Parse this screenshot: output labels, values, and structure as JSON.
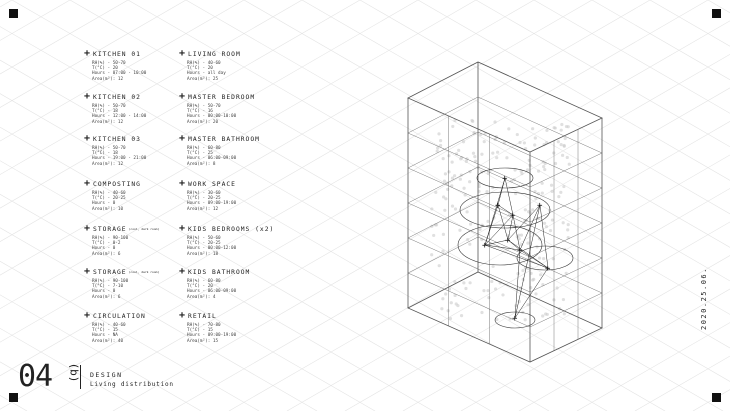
{
  "rooms": [
    {
      "title": "KITCHEN 01",
      "rh": "RH(%) - 50-70",
      "t": "T(°C) - 20",
      "hours": "Hours - 07:00 - 10:00",
      "area": "Area(m²): 12"
    },
    {
      "title": "KITCHEN 02",
      "rh": "RH(%) - 50-70",
      "t": "T(°C) - 18",
      "hours": "Hours - 12:00 - 14:00",
      "area": "Area(m²): 12"
    },
    {
      "title": "KITCHEN 03",
      "rh": "RH(%) - 50-70",
      "t": "T(°C) - 18",
      "hours": "Hours - 19:00 - 21:00",
      "area": "Area(m²): 12"
    },
    {
      "title": "COMPOSTING",
      "rh": "RH(%) - 40-60",
      "t": "T(°C) - 20-25",
      "hours": "Hours - 0",
      "area": "Area(m²): 10"
    },
    {
      "title": "STORAGE",
      "subtitle": "(cool, dark room)",
      "rh": "RH(%) - 90-100",
      "t": "T(°C) - 0-2",
      "hours": "Hours - 0",
      "area": "Area(m²): 6"
    },
    {
      "title": "STORAGE",
      "subtitle": "(cool, dark room)",
      "rh": "RH(%) - 90-100",
      "t": "T(°C) - 7-10",
      "hours": "Hours - 0",
      "area": "Area(m²): 6"
    },
    {
      "title": "CIRCULATION",
      "rh": "RH(%) - 40-60",
      "t": "T(°C) - 15",
      "hours": "Hours - NA",
      "area": "Area(m²): 40"
    },
    {
      "title": "LIVING ROOM",
      "rh": "RH(%) - 40-60",
      "t": "T(°C) - 20",
      "hours": "Hours - all day",
      "area": "Area(m²): 25"
    },
    {
      "title": "MASTER BEDROOM",
      "rh": "RH(%) - 50-70",
      "t": "T(°C) - 16",
      "hours": "Hours - 00:00-10:00",
      "area": "Area(m²): 20"
    },
    {
      "title": "MASTER BATHROOM",
      "rh": "RH(%) - 60-80",
      "t": "T(°C) - 25",
      "hours": "Hours - 06:00-09:00",
      "area": "Area(m²): 8"
    },
    {
      "title": "WORK SPACE",
      "rh": "RH(%) - 30-60",
      "t": "T(°C) - 20-25",
      "hours": "Hours - 09:00-19:00",
      "area": "Area(m²): 12"
    },
    {
      "title": "KIDS BEDROOMS (x2)",
      "rh": "RH(%) - 50-60",
      "t": "T(°C) - 20-25",
      "hours": "Hours - 00:00-12:00",
      "area": "Area(m²): 18"
    },
    {
      "title": "KIDS BATHROOM",
      "rh": "RH(%) - 60-80",
      "t": "T(°C) - 20",
      "hours": "Hours - 06:00-09:00",
      "area": "Area(m²): 4"
    },
    {
      "title": "RETAIL",
      "rh": "RH(%) - 70-80",
      "t": "T(°C) - 15",
      "hours": "Hours - 09:00-19:00",
      "area": "Area(m²): 15"
    }
  ],
  "footer": {
    "number": "04",
    "section": "(b)",
    "title": "DESIGN",
    "subtitle": "Living distribution"
  },
  "date": "2020.25.06.",
  "colors": {
    "ink": "#222222",
    "grid": "#e4e4e4",
    "corner": "#111111"
  }
}
